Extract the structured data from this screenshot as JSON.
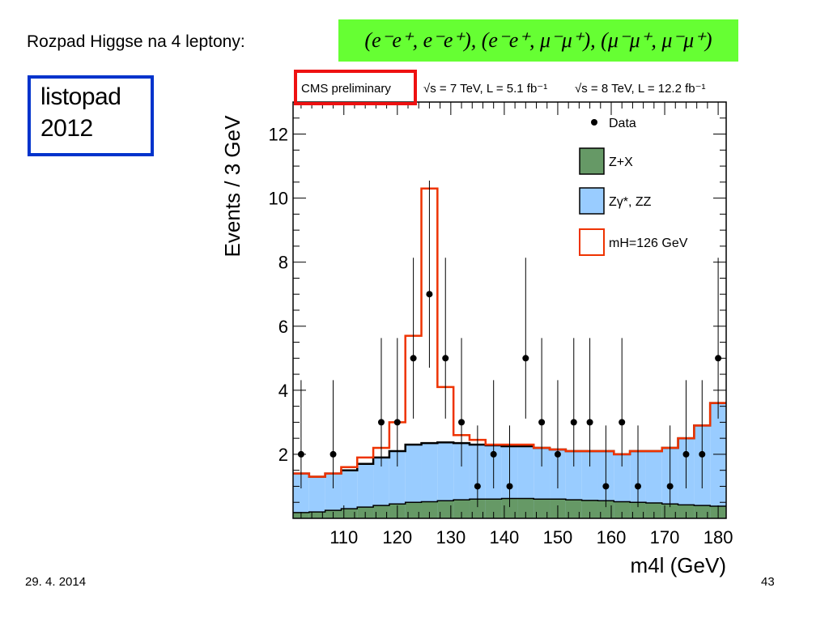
{
  "slide": {
    "title": "Rozpad Higgse na 4 leptony:",
    "formula": "(e⁻e⁺, e⁻e⁺), (e⁻e⁺, μ⁻μ⁺), (μ⁻μ⁺, μ⁻μ⁺)",
    "date_box_line1": "listopad",
    "date_box_line2": "2012",
    "footer_date": "29. 4. 2014",
    "page_number": "43"
  },
  "colors": {
    "formula_bg": "#66ff33",
    "date_box_border": "#0033cc",
    "cms_box_border": "#ee1111",
    "zx_fill": "#669966",
    "zz_fill": "#99ccff",
    "signal_line": "#ee3300"
  },
  "chart_data": {
    "type": "bar",
    "header": {
      "cms_label": "CMS preliminary",
      "lumi7": "√s = 7 TeV, L = 5.1 fb⁻¹",
      "lumi8": "√s = 8 TeV, L = 12.2 fb⁻¹"
    },
    "xlabel": "m4l (GeV)",
    "ylabel": "Events / 3 GeV",
    "xlim": [
      100.5,
      181.5
    ],
    "ylim": [
      0,
      13
    ],
    "bin_width": 3,
    "x_ticks": [
      110,
      120,
      130,
      140,
      150,
      160,
      170,
      180
    ],
    "y_ticks": [
      2,
      4,
      6,
      8,
      10,
      12
    ],
    "legend": [
      "Data",
      "Z+X",
      "Zγ*, ZZ",
      "mH=126 GeV"
    ],
    "bin_edges": [
      100.5,
      103.5,
      106.5,
      109.5,
      112.5,
      115.5,
      118.5,
      121.5,
      124.5,
      127.5,
      130.5,
      133.5,
      136.5,
      139.5,
      142.5,
      145.5,
      148.5,
      151.5,
      154.5,
      157.5,
      160.5,
      163.5,
      166.5,
      169.5,
      172.5,
      175.5,
      178.5,
      181.5
    ],
    "series": [
      {
        "name": "Z+X",
        "values": [
          0.18,
          0.2,
          0.25,
          0.3,
          0.35,
          0.4,
          0.45,
          0.5,
          0.52,
          0.55,
          0.58,
          0.6,
          0.6,
          0.62,
          0.62,
          0.6,
          0.6,
          0.58,
          0.56,
          0.55,
          0.52,
          0.5,
          0.48,
          0.45,
          0.42,
          0.4,
          0.38
        ]
      },
      {
        "name": "Zγ*, ZZ",
        "values": [
          1.4,
          1.3,
          1.4,
          1.5,
          1.7,
          1.9,
          2.1,
          2.3,
          2.35,
          2.37,
          2.35,
          2.3,
          2.28,
          2.25,
          2.25,
          2.2,
          2.15,
          2.1,
          2.1,
          2.1,
          2.0,
          2.1,
          2.1,
          2.2,
          2.5,
          2.9,
          3.6
        ]
      },
      {
        "name": "mH=126 GeV",
        "values": [
          1.4,
          1.3,
          1.4,
          1.6,
          1.9,
          2.2,
          3.0,
          5.7,
          10.3,
          4.1,
          2.6,
          2.45,
          2.3,
          2.3,
          2.3,
          2.2,
          2.15,
          2.1,
          2.1,
          2.1,
          2.0,
          2.1,
          2.1,
          2.2,
          2.5,
          2.9,
          3.6
        ]
      }
    ],
    "data_points": {
      "x": [
        102,
        108,
        117,
        120,
        123,
        126,
        129,
        132,
        135,
        138,
        141,
        144,
        147,
        150,
        153,
        156,
        159,
        162,
        165,
        171,
        174,
        177,
        180
      ],
      "y": [
        2,
        2,
        3,
        3,
        5,
        7,
        5,
        3,
        1,
        2,
        1,
        5,
        3,
        2,
        3,
        3,
        1,
        3,
        1,
        1,
        2,
        2,
        5
      ]
    }
  }
}
